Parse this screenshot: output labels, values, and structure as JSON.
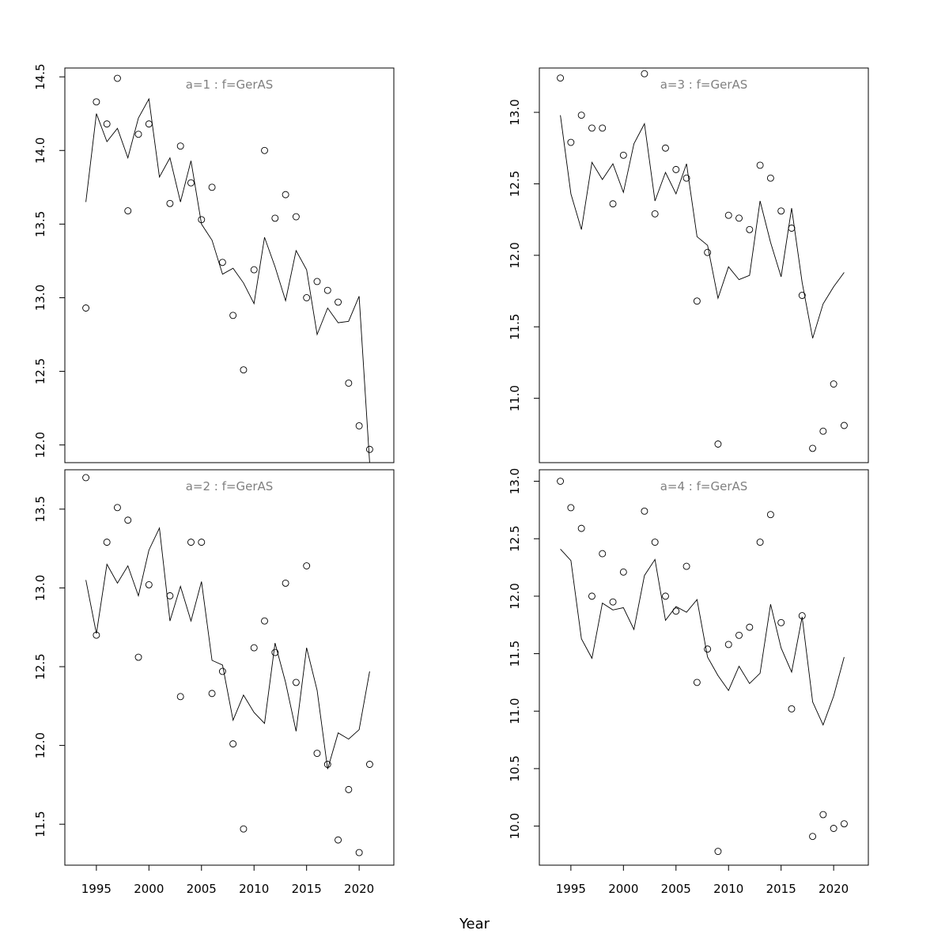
{
  "figure": {
    "xlabel": "Year",
    "title_color": "#808080"
  },
  "chart_data": [
    {
      "type": "scatter",
      "title": "a=1  :  f=GerAS",
      "xlabel": "",
      "ylabel": "",
      "xlim": [
        1992,
        2023.3
      ],
      "ylim": [
        11.88,
        14.56
      ],
      "x_ticks": [
        1995,
        2000,
        2005,
        2010,
        2015,
        2020
      ],
      "y_ticks": [
        12.0,
        12.5,
        13.0,
        13.5,
        14.0,
        14.5
      ],
      "show_x_ticks": false,
      "grid": false,
      "x": [
        1994,
        1995,
        1996,
        1997,
        1998,
        1999,
        2000,
        2001,
        2002,
        2003,
        2004,
        2005,
        2006,
        2007,
        2008,
        2009,
        2010,
        2011,
        2012,
        2013,
        2014,
        2015,
        2016,
        2017,
        2018,
        2019,
        2020,
        2021
      ],
      "observed": [
        12.93,
        14.33,
        14.18,
        14.49,
        13.59,
        14.11,
        14.18,
        null,
        13.64,
        14.03,
        13.78,
        13.53,
        13.75,
        13.24,
        12.88,
        12.51,
        13.19,
        14.0,
        13.54,
        13.7,
        13.55,
        13.0,
        13.11,
        13.05,
        12.97,
        12.42,
        12.13,
        11.97
      ],
      "fitted": [
        13.65,
        14.25,
        14.06,
        14.15,
        13.95,
        14.22,
        14.35,
        13.82,
        13.95,
        13.65,
        13.93,
        13.5,
        13.39,
        13.16,
        13.2,
        13.1,
        12.96,
        13.41,
        13.21,
        12.98,
        13.32,
        13.19,
        12.75,
        12.93,
        12.83,
        12.84,
        13.01,
        11.88
      ]
    },
    {
      "type": "scatter",
      "title": "a=3  :  f=GerAS",
      "xlabel": "",
      "ylabel": "",
      "xlim": [
        1992,
        2023.3
      ],
      "ylim": [
        10.55,
        13.31
      ],
      "x_ticks": [
        1995,
        2000,
        2005,
        2010,
        2015,
        2020
      ],
      "y_ticks": [
        11.0,
        11.5,
        12.0,
        12.5,
        13.0
      ],
      "show_x_ticks": false,
      "grid": false,
      "x": [
        1994,
        1995,
        1996,
        1997,
        1998,
        1999,
        2000,
        2001,
        2002,
        2003,
        2004,
        2005,
        2006,
        2007,
        2008,
        2009,
        2010,
        2011,
        2012,
        2013,
        2014,
        2015,
        2016,
        2017,
        2018,
        2019,
        2020,
        2021
      ],
      "observed": [
        13.24,
        12.79,
        12.98,
        12.89,
        12.89,
        12.36,
        12.7,
        null,
        13.27,
        12.29,
        12.75,
        12.6,
        12.54,
        11.68,
        12.02,
        10.68,
        12.28,
        12.26,
        12.18,
        12.63,
        12.54,
        12.31,
        12.19,
        11.72,
        10.65,
        10.77,
        11.1,
        10.81
      ],
      "fitted": [
        12.98,
        12.43,
        12.18,
        12.65,
        12.53,
        12.64,
        12.44,
        12.78,
        12.92,
        12.38,
        12.58,
        12.43,
        12.64,
        12.13,
        12.07,
        11.7,
        11.92,
        11.83,
        11.86,
        12.38,
        12.09,
        11.85,
        12.33,
        11.81,
        11.42,
        11.66,
        11.78,
        11.88
      ]
    },
    {
      "type": "scatter",
      "title": "a=2  :  f=GerAS",
      "xlabel": "",
      "ylabel": "",
      "xlim": [
        1992,
        2023.3
      ],
      "ylim": [
        11.24,
        13.75
      ],
      "x_ticks": [
        1995,
        2000,
        2005,
        2010,
        2015,
        2020
      ],
      "y_ticks": [
        11.5,
        12.0,
        12.5,
        13.0,
        13.5
      ],
      "show_x_ticks": true,
      "grid": false,
      "x": [
        1994,
        1995,
        1996,
        1997,
        1998,
        1999,
        2000,
        2001,
        2002,
        2003,
        2004,
        2005,
        2006,
        2007,
        2008,
        2009,
        2010,
        2011,
        2012,
        2013,
        2014,
        2015,
        2016,
        2017,
        2018,
        2019,
        2020,
        2021
      ],
      "observed": [
        13.7,
        12.7,
        13.29,
        13.51,
        13.43,
        12.56,
        13.02,
        null,
        12.95,
        12.31,
        13.29,
        13.29,
        12.33,
        12.47,
        12.01,
        11.47,
        12.62,
        12.79,
        12.59,
        13.03,
        12.4,
        13.14,
        11.95,
        11.88,
        11.4,
        11.72,
        11.32,
        11.88
      ],
      "fitted": [
        13.05,
        12.71,
        13.15,
        13.03,
        13.14,
        12.95,
        13.24,
        13.38,
        12.79,
        13.01,
        12.79,
        13.04,
        12.54,
        12.51,
        12.16,
        12.32,
        12.21,
        12.14,
        12.65,
        12.4,
        12.09,
        12.62,
        12.35,
        11.85,
        12.08,
        12.04,
        12.1,
        12.47
      ]
    },
    {
      "type": "scatter",
      "title": "a=4  :  f=GerAS",
      "xlabel": "",
      "ylabel": "",
      "xlim": [
        1992,
        2023.3
      ],
      "ylim": [
        9.66,
        13.1
      ],
      "x_ticks": [
        1995,
        2000,
        2005,
        2010,
        2015,
        2020
      ],
      "y_ticks": [
        10.0,
        10.5,
        11.0,
        11.5,
        12.0,
        12.5,
        13.0
      ],
      "show_x_ticks": true,
      "grid": false,
      "x": [
        1994,
        1995,
        1996,
        1997,
        1998,
        1999,
        2000,
        2001,
        2002,
        2003,
        2004,
        2005,
        2006,
        2007,
        2008,
        2009,
        2010,
        2011,
        2012,
        2013,
        2014,
        2015,
        2016,
        2017,
        2018,
        2019,
        2020,
        2021
      ],
      "observed": [
        13.0,
        12.77,
        12.59,
        12.0,
        12.37,
        11.95,
        12.21,
        null,
        12.74,
        12.47,
        12.0,
        11.87,
        12.26,
        11.25,
        11.54,
        9.78,
        11.58,
        11.66,
        11.73,
        12.47,
        12.71,
        11.77,
        11.02,
        11.83,
        9.91,
        10.1,
        9.98,
        10.02
      ],
      "fitted": [
        12.41,
        12.31,
        11.63,
        11.46,
        11.94,
        11.88,
        11.9,
        11.71,
        12.18,
        12.32,
        11.79,
        11.91,
        11.86,
        11.97,
        11.47,
        11.31,
        11.18,
        11.39,
        11.24,
        11.33,
        11.93,
        11.55,
        11.34,
        11.82,
        11.08,
        10.88,
        11.13,
        11.47
      ]
    }
  ]
}
